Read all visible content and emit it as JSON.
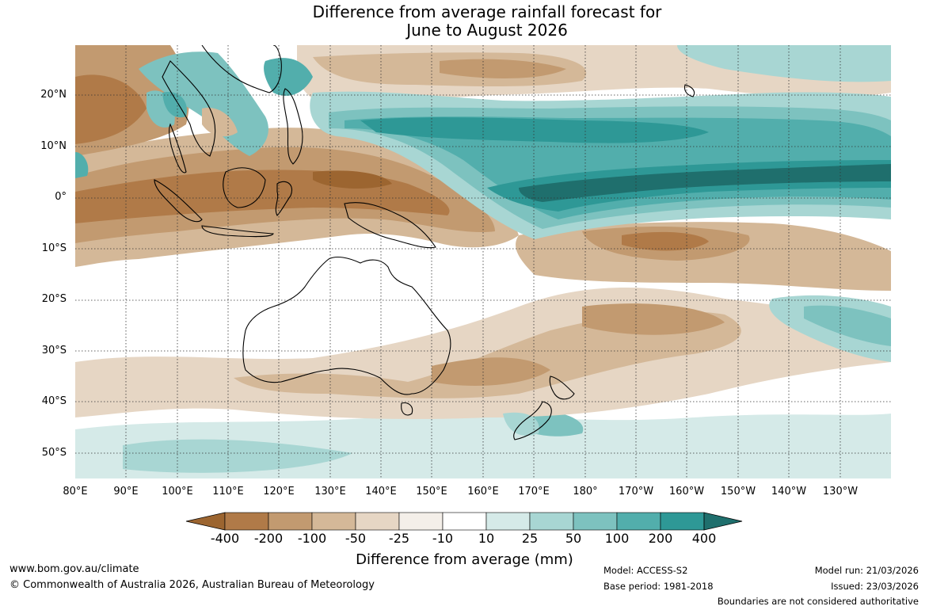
{
  "title_line1": "Difference from average rainfall forecast for",
  "title_line2": "June to August 2026",
  "lat_labels": [
    "20°N",
    "10°N",
    "0°",
    "10°S",
    "20°S",
    "30°S",
    "40°S",
    "50°S"
  ],
  "lon_labels": [
    "80°E",
    "90°E",
    "100°E",
    "110°E",
    "120°E",
    "130°E",
    "140°E",
    "150°E",
    "160°E",
    "170°E",
    "180°",
    "170°W",
    "160°W",
    "150°W",
    "140°W",
    "130°W"
  ],
  "colorbar": {
    "ticks": [
      "-400",
      "-200",
      "-100",
      "-50",
      "-25",
      "-10",
      "10",
      "25",
      "50",
      "100",
      "200",
      "400"
    ],
    "colors": [
      "#9c6530",
      "#b07a48",
      "#c29a70",
      "#d4b898",
      "#e6d6c4",
      "#f4efe9",
      "#ffffff",
      "#d5eae8",
      "#a8d6d3",
      "#7dc2bf",
      "#52aeac",
      "#2e9896",
      "#1f6f6d"
    ],
    "label": "Difference from average (mm)"
  },
  "footer": {
    "website": "www.bom.gov.au/climate",
    "copyright": "© Commonwealth of Australia 2026, Australian Bureau of Meteorology",
    "model": "Model: ACCESS-S2",
    "base_period": "Base period: 1981-2018",
    "model_run": "Model run: 21/03/2026",
    "issued": "Issued: 23/03/2026",
    "disclaimer": "Boundaries are not considered authoritative"
  }
}
